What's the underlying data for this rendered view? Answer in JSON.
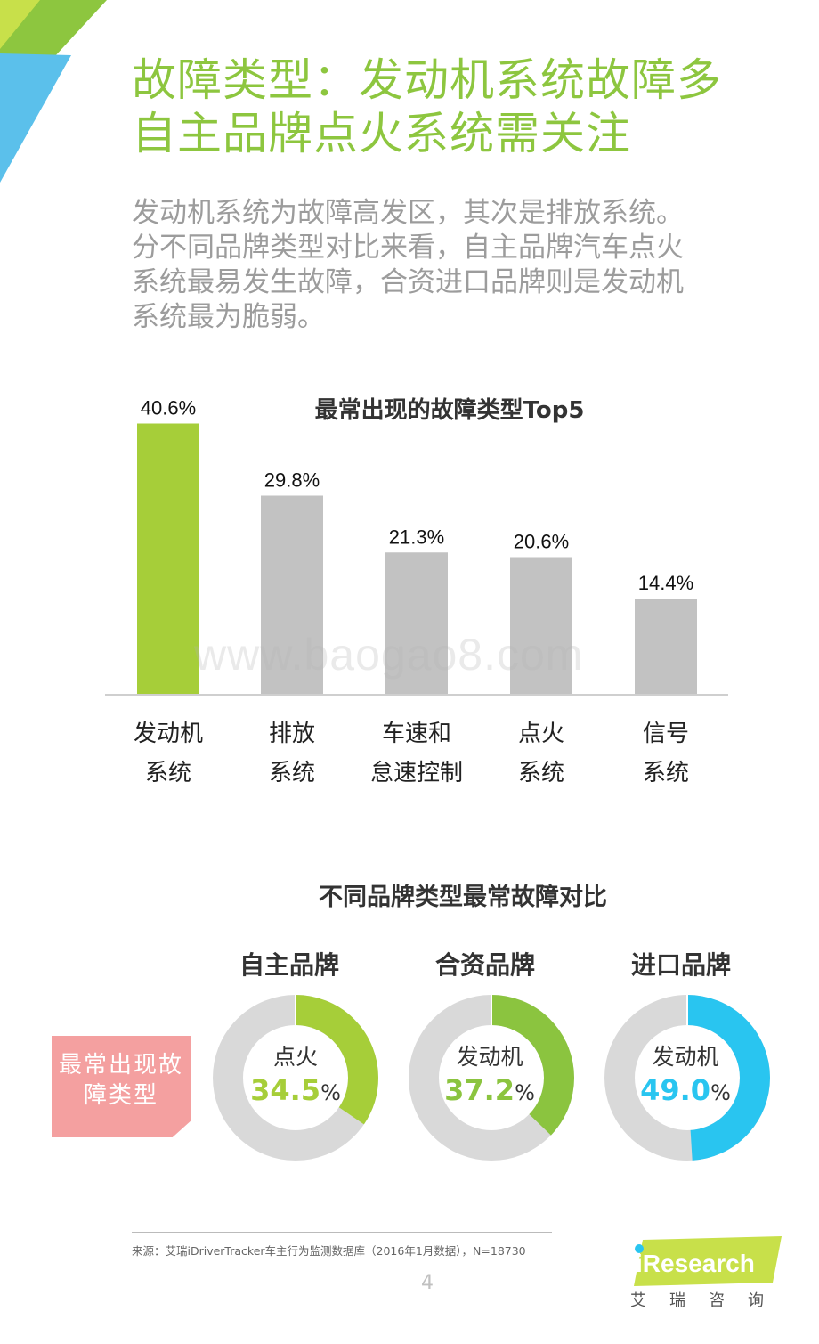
{
  "header": {
    "title_line1": "故障类型：发动机系统故障多",
    "title_line2": "自主品牌点火系统需关注",
    "intro_lines": [
      "发动机系统为故障高发区，其次是排放系统。",
      "分不同品牌类型对比来看，自主品牌汽车点火",
      "系统最易发生故障，合资进口品牌则是发动机",
      "系统最为脆弱。"
    ]
  },
  "chart_data": [
    {
      "type": "bar",
      "title": "最常出现的故障类型Top5",
      "categories": [
        [
          "发动机",
          "系统"
        ],
        [
          "排放",
          "系统"
        ],
        [
          "车速和",
          "怠速控制"
        ],
        [
          "点火",
          "系统"
        ],
        [
          "信号",
          "系统"
        ]
      ],
      "values": [
        40.6,
        29.8,
        21.3,
        20.6,
        14.4
      ],
      "value_labels": [
        "40.6%",
        "29.8%",
        "21.3%",
        "20.6%",
        "14.4%"
      ],
      "ylim": [
        0,
        45
      ],
      "colors": [
        "#a6ce39",
        "#c2c2c2",
        "#c2c2c2",
        "#c2c2c2",
        "#c2c2c2"
      ],
      "grid": false
    },
    {
      "type": "pie",
      "title": "不同品牌类型最常故障对比",
      "row_label": "最常出现故障类型",
      "series": [
        {
          "name": "自主品牌",
          "fault": "点火",
          "value": 34.5,
          "value_text": "34.5",
          "color": "#a6ce39"
        },
        {
          "name": "合资品牌",
          "fault": "发动机",
          "value": 37.2,
          "value_text": "37.2",
          "color": "#8bc43f"
        },
        {
          "name": "进口品牌",
          "fault": "发动机",
          "value": 49.0,
          "value_text": "49.0",
          "color": "#29c5f0"
        }
      ],
      "unit": "%",
      "remainder_color": "#d9d9d9"
    }
  ],
  "watermark": "www.baogao8.com",
  "footer": {
    "source": "来源：艾瑞iDriverTracker车主行为监测数据库（2016年1月数据），N=18730",
    "page_number": "4",
    "logo_text": "iResearch",
    "logo_sub": "艾瑞咨询"
  },
  "colors": {
    "accent_green": "#8dc63f",
    "bar_green": "#a6ce39",
    "bar_grey": "#c2c2c2",
    "blue": "#29c5f0",
    "tag_pink": "#f4a0a0"
  }
}
